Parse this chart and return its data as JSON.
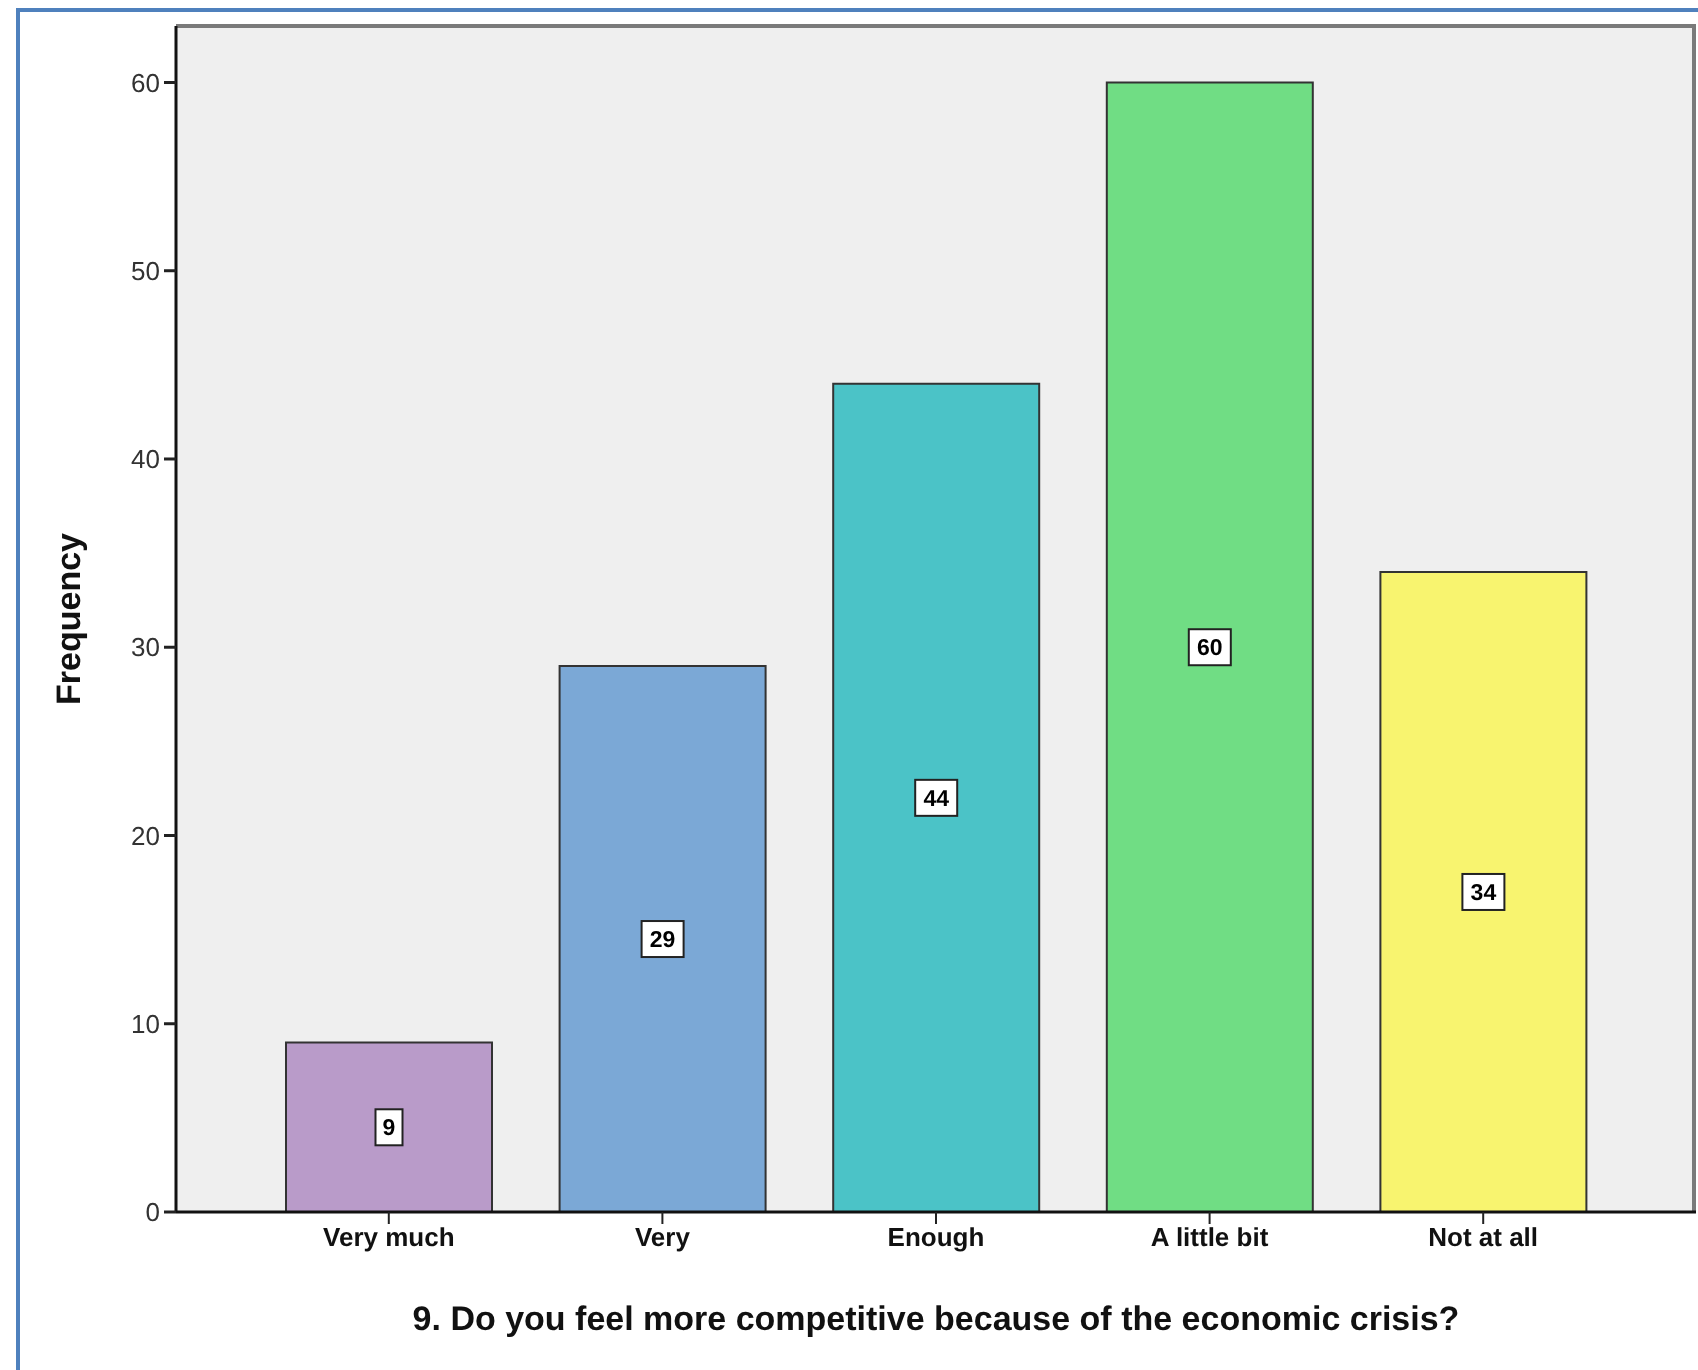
{
  "chart_data": {
    "type": "bar",
    "xlabel": "9. Do you feel more competitive because of the economic crisis?",
    "ylabel": "Frequency",
    "categories": [
      "Very much",
      "Very",
      "Enough",
      "A little bit",
      "Not at all"
    ],
    "values": [
      9,
      29,
      44,
      60,
      34
    ],
    "colors": [
      "#b99bc9",
      "#7ba8d6",
      "#4bc3c7",
      "#70dd84",
      "#f8f46f"
    ],
    "ylim": [
      0,
      63
    ],
    "yticks": [
      0,
      10,
      20,
      30,
      40,
      50,
      60
    ],
    "data_labels": true
  }
}
